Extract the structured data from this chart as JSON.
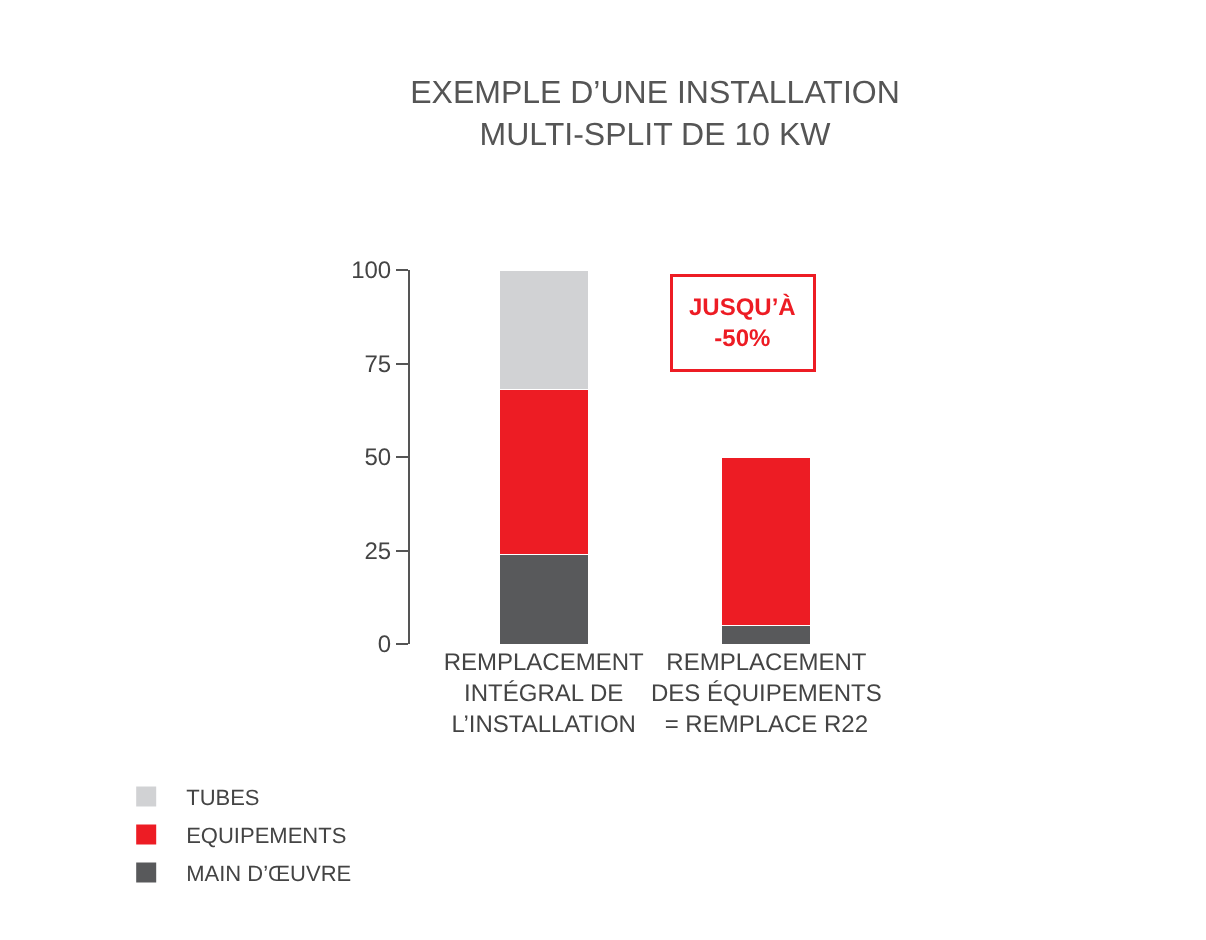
{
  "chart_data": {
    "type": "bar",
    "stacked": true,
    "title": "EXEMPLE D’UNE INSTALLATION\nMULTI-SPLIT DE 10 KW",
    "categories": [
      "REMPLACEMENT\nINTÉGRAL DE\nL’INSTALLATION",
      "REMPLACEMENT\nDES ÉQUIPEMENTS\n= REMPLACE R22"
    ],
    "series": [
      {
        "name": "MAIN D’ŒUVRE",
        "color": "#58595b",
        "values": [
          24,
          5
        ]
      },
      {
        "name": "EQUIPEMENTS",
        "color": "#ed1c24",
        "values": [
          44,
          45
        ]
      },
      {
        "name": "TUBES",
        "color": "#d1d2d4",
        "values": [
          32,
          null
        ]
      }
    ],
    "ylim": [
      0,
      100
    ],
    "yticks": [
      0,
      25,
      50,
      75,
      100
    ],
    "legend": "bottom left",
    "annotations": [
      "JUSQU’À\n-50%"
    ]
  }
}
